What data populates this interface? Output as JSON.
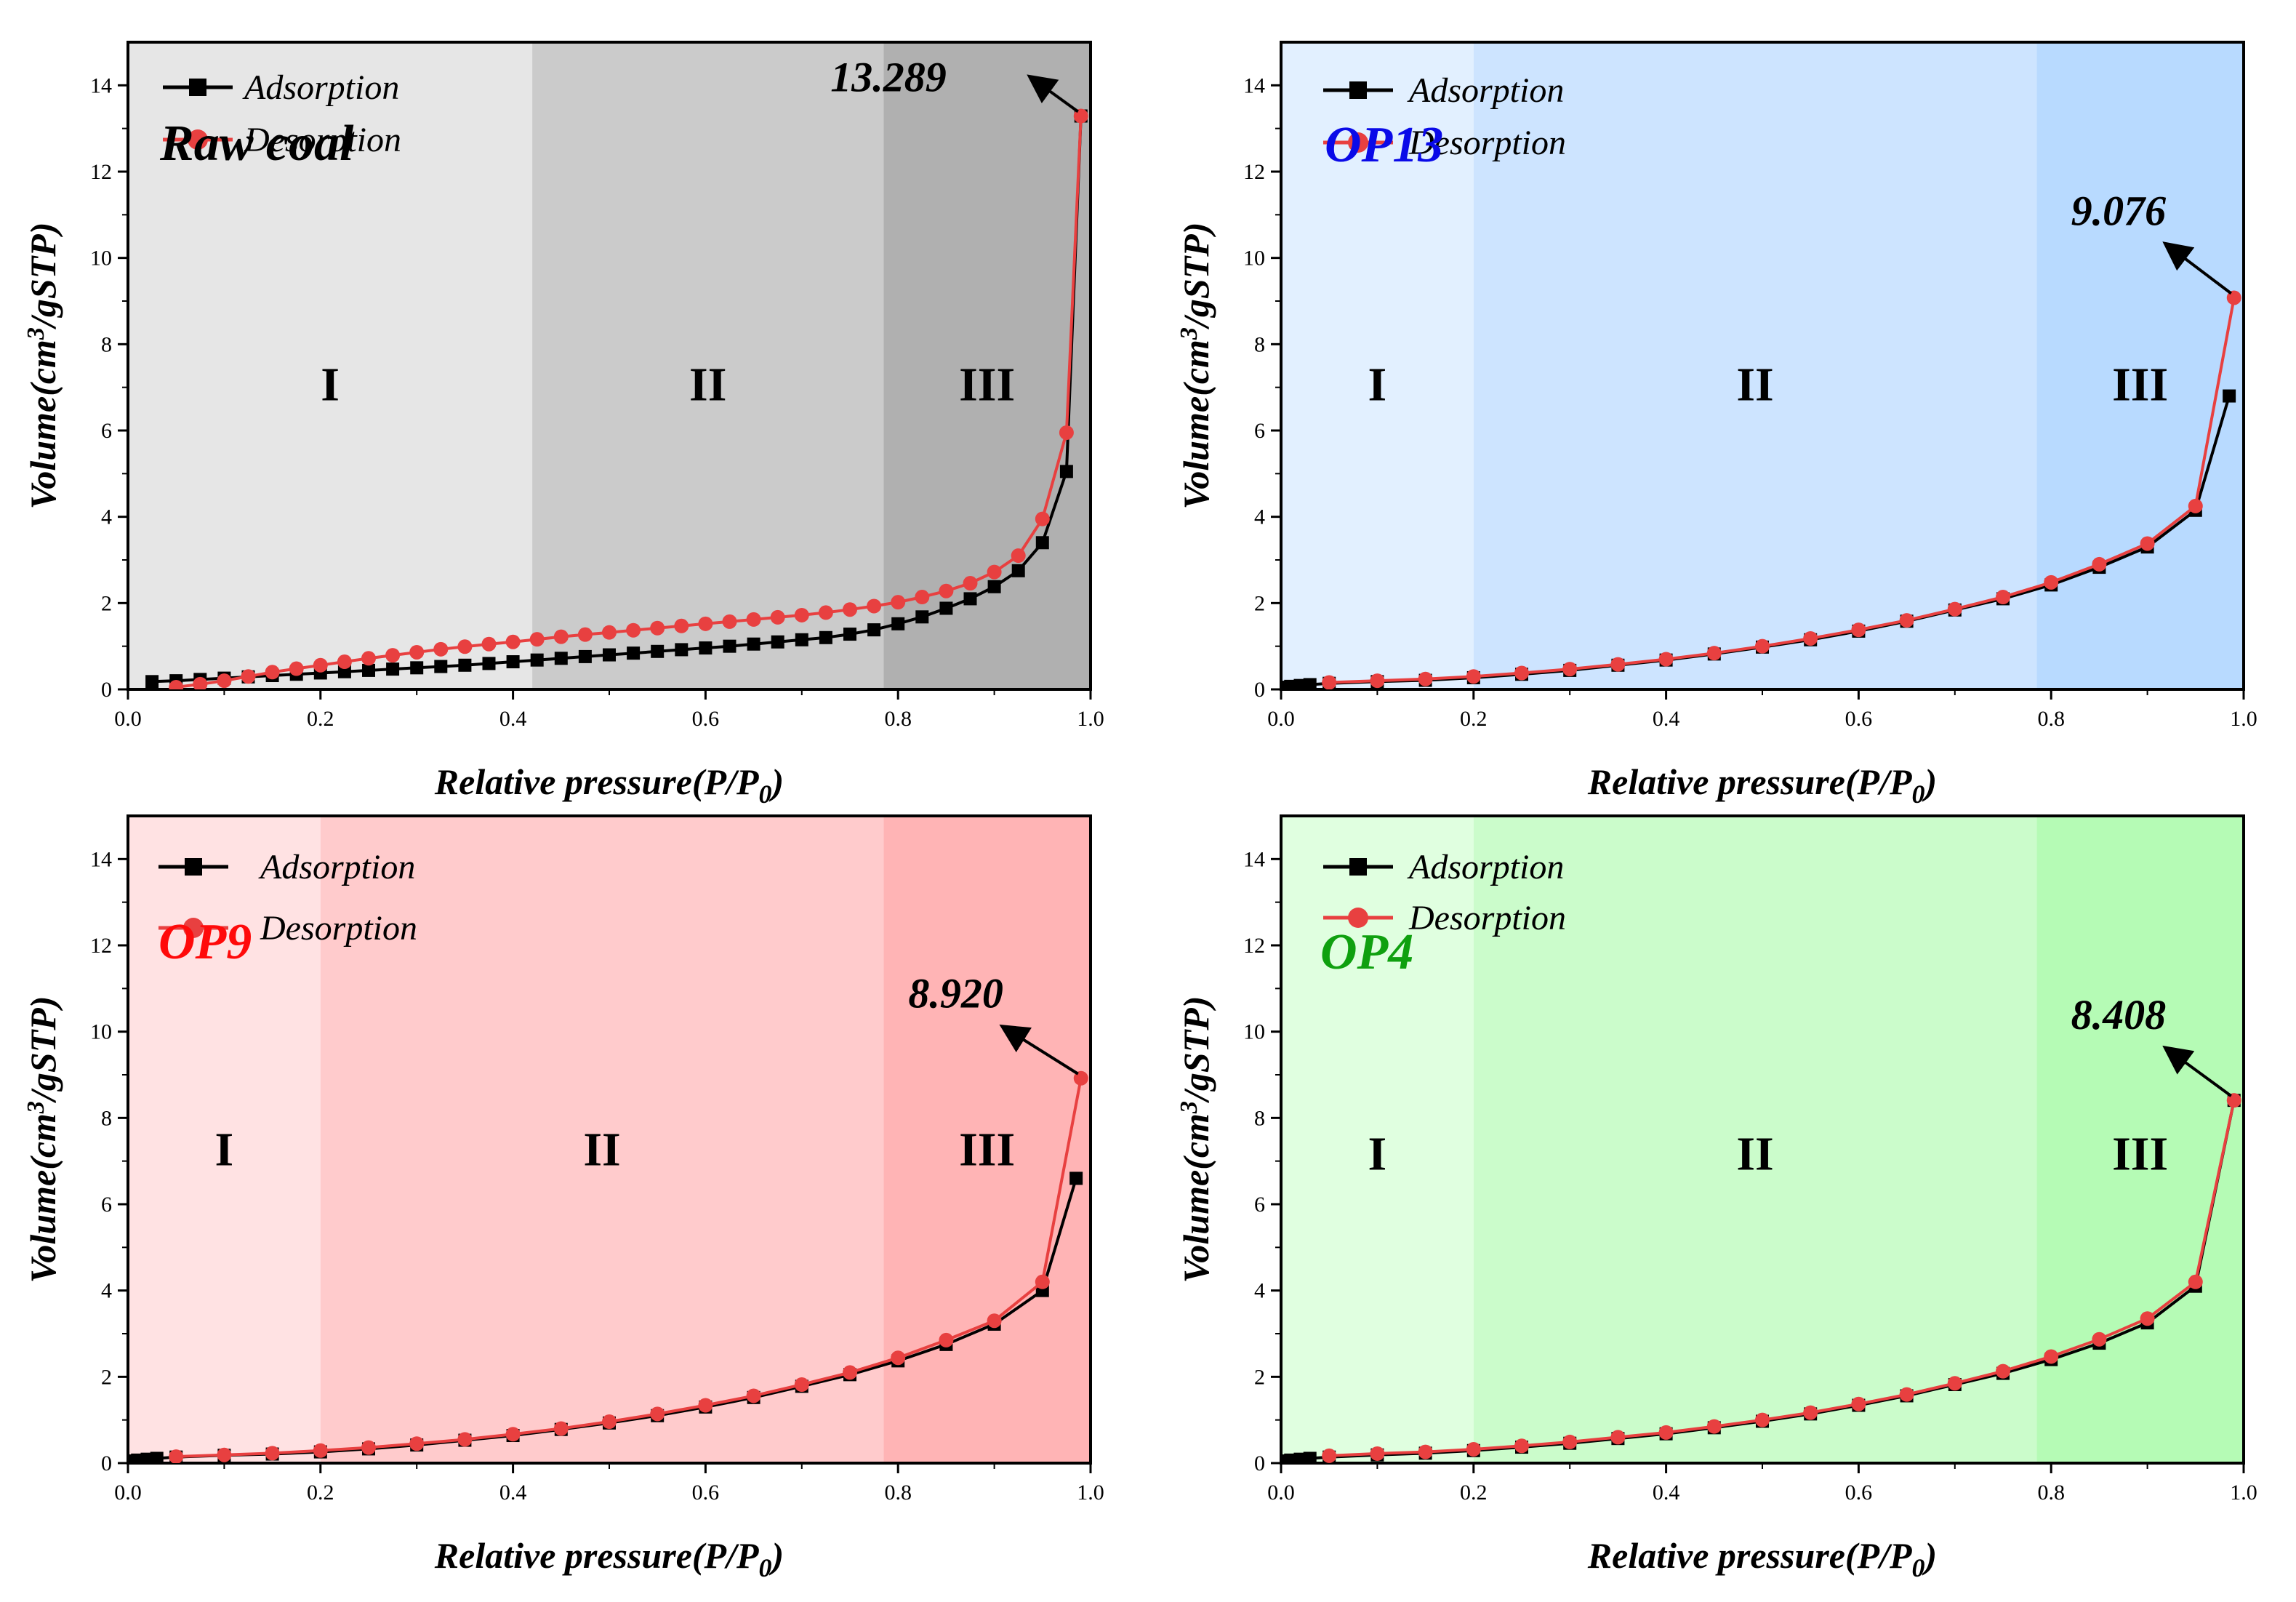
{
  "chart_data": [
    {
      "type": "line",
      "panel": "top-left",
      "sample_label": "Raw coal",
      "sample_color": "#000000",
      "xlabel_main": "Relative pressure(P/P",
      "xlabel_sub": "0",
      "xlabel_close": ")",
      "ylabel_main": "Volume(cm",
      "ylabel_sup": "3",
      "ylabel_rest": "/gSTP)",
      "xlim": [
        0.0,
        1.0
      ],
      "ylim": [
        0,
        15
      ],
      "x_ticks": [
        "0.0",
        "0.2",
        "0.4",
        "0.6",
        "0.8",
        "1.0"
      ],
      "y_ticks": [
        "0",
        "2",
        "4",
        "6",
        "8",
        "10",
        "12",
        "14"
      ],
      "legend": {
        "placement": "top-left",
        "entries": [
          "Adsorption",
          "Desorption"
        ]
      },
      "regions": [
        {
          "label": "I",
          "x_start": 0.0,
          "x_end": 0.42,
          "color": "#e6e6e6"
        },
        {
          "label": "II",
          "x_start": 0.42,
          "x_end": 0.785,
          "color": "#cbcbcb"
        },
        {
          "label": "III",
          "x_start": 0.785,
          "x_end": 1.0,
          "color": "#b0b0b0"
        }
      ],
      "region_label_y": 6.7,
      "peak": {
        "label": "13.289",
        "x": 0.99,
        "y": 13.289,
        "label_x": 0.79,
        "label_y": 14.2
      },
      "series": [
        {
          "name": "Adsorption",
          "color": "#000000",
          "marker": "square",
          "x": [
            0.025,
            0.05,
            0.075,
            0.1,
            0.125,
            0.15,
            0.175,
            0.2,
            0.225,
            0.25,
            0.275,
            0.3,
            0.325,
            0.35,
            0.375,
            0.4,
            0.425,
            0.45,
            0.475,
            0.5,
            0.525,
            0.55,
            0.575,
            0.6,
            0.625,
            0.65,
            0.675,
            0.7,
            0.725,
            0.75,
            0.775,
            0.8,
            0.825,
            0.85,
            0.875,
            0.9,
            0.925,
            0.95,
            0.975,
            0.99
          ],
          "y": [
            0.18,
            0.2,
            0.23,
            0.26,
            0.29,
            0.32,
            0.35,
            0.38,
            0.41,
            0.44,
            0.47,
            0.5,
            0.53,
            0.56,
            0.6,
            0.64,
            0.68,
            0.72,
            0.76,
            0.8,
            0.84,
            0.88,
            0.92,
            0.96,
            1.0,
            1.05,
            1.1,
            1.15,
            1.2,
            1.28,
            1.38,
            1.52,
            1.68,
            1.88,
            2.1,
            2.38,
            2.75,
            3.4,
            5.05,
            13.289
          ]
        },
        {
          "name": "Desorption",
          "color": "#e84040",
          "marker": "circle",
          "x": [
            0.05,
            0.075,
            0.1,
            0.125,
            0.15,
            0.175,
            0.2,
            0.225,
            0.25,
            0.275,
            0.3,
            0.325,
            0.35,
            0.375,
            0.4,
            0.425,
            0.45,
            0.475,
            0.5,
            0.525,
            0.55,
            0.575,
            0.6,
            0.625,
            0.65,
            0.675,
            0.7,
            0.725,
            0.75,
            0.775,
            0.8,
            0.825,
            0.85,
            0.875,
            0.9,
            0.925,
            0.95,
            0.975,
            0.99
          ],
          "y": [
            0.05,
            0.12,
            0.2,
            0.3,
            0.4,
            0.48,
            0.56,
            0.64,
            0.72,
            0.79,
            0.86,
            0.93,
            0.99,
            1.05,
            1.1,
            1.16,
            1.22,
            1.27,
            1.32,
            1.37,
            1.42,
            1.47,
            1.52,
            1.57,
            1.62,
            1.67,
            1.72,
            1.78,
            1.85,
            1.93,
            2.02,
            2.14,
            2.28,
            2.46,
            2.72,
            3.1,
            3.95,
            5.95,
            13.289
          ]
        }
      ]
    },
    {
      "type": "line",
      "panel": "top-right",
      "sample_label": "OP13",
      "sample_color": "#0a0ae8",
      "xlabel_main": "Relative pressure(P/P",
      "xlabel_sub": "0",
      "xlabel_close": ")",
      "ylabel_main": "Volume(cm",
      "ylabel_sup": "3",
      "ylabel_rest": "/gSTP)",
      "xlim": [
        0.0,
        1.0
      ],
      "ylim": [
        0,
        15
      ],
      "x_ticks": [
        "0.0",
        "0.2",
        "0.4",
        "0.6",
        "0.8",
        "1.0"
      ],
      "y_ticks": [
        "0",
        "2",
        "4",
        "6",
        "8",
        "10",
        "12",
        "14"
      ],
      "legend": {
        "placement": "top-left",
        "entries": [
          "Adsorption",
          "Desorption"
        ]
      },
      "regions": [
        {
          "label": "I",
          "x_start": 0.0,
          "x_end": 0.2,
          "color": "#e2f0ff"
        },
        {
          "label": "II",
          "x_start": 0.2,
          "x_end": 0.785,
          "color": "#cde4ff"
        },
        {
          "label": "III",
          "x_start": 0.785,
          "x_end": 1.0,
          "color": "#b8daff"
        }
      ],
      "region_label_y": 6.7,
      "peak": {
        "label": "9.076",
        "x": 0.99,
        "y": 9.076,
        "label_x": 0.87,
        "label_y": 11.1
      },
      "series": [
        {
          "name": "Adsorption",
          "color": "#000000",
          "marker": "square",
          "x": [
            0.005,
            0.01,
            0.02,
            0.03,
            0.05,
            0.1,
            0.15,
            0.2,
            0.25,
            0.3,
            0.35,
            0.4,
            0.45,
            0.5,
            0.55,
            0.6,
            0.65,
            0.7,
            0.75,
            0.8,
            0.85,
            0.9,
            0.95,
            0.985
          ],
          "y": [
            0.05,
            0.07,
            0.09,
            0.11,
            0.14,
            0.18,
            0.21,
            0.27,
            0.35,
            0.44,
            0.56,
            0.68,
            0.82,
            0.98,
            1.15,
            1.35,
            1.58,
            1.84,
            2.1,
            2.42,
            2.83,
            3.3,
            4.15,
            6.8
          ]
        },
        {
          "name": "Desorption",
          "color": "#e84040",
          "marker": "circle",
          "x": [
            0.05,
            0.1,
            0.15,
            0.2,
            0.25,
            0.3,
            0.35,
            0.4,
            0.45,
            0.5,
            0.55,
            0.6,
            0.65,
            0.7,
            0.75,
            0.8,
            0.85,
            0.9,
            0.95,
            0.99
          ],
          "y": [
            0.16,
            0.2,
            0.24,
            0.3,
            0.38,
            0.47,
            0.58,
            0.7,
            0.84,
            1.0,
            1.18,
            1.38,
            1.6,
            1.86,
            2.14,
            2.48,
            2.9,
            3.38,
            4.25,
            9.076
          ]
        }
      ]
    },
    {
      "type": "line",
      "panel": "bottom-left",
      "sample_label": "OP9",
      "sample_color": "#ff0a0a",
      "xlabel_main": "Relative pressure(P/P",
      "xlabel_sub": "0",
      "xlabel_close": ")",
      "ylabel_main": "Volume(cm",
      "ylabel_sup": "3",
      "ylabel_rest": "/gSTP)",
      "xlim": [
        0.0,
        1.0
      ],
      "ylim": [
        0,
        15
      ],
      "x_ticks": [
        "0.0",
        "0.2",
        "0.4",
        "0.6",
        "0.8",
        "1.0"
      ],
      "y_ticks": [
        "0",
        "2",
        "4",
        "6",
        "8",
        "10",
        "12",
        "14"
      ],
      "legend": {
        "placement": "top-left",
        "entries": [
          "Adsorption",
          "Desorption"
        ]
      },
      "regions": [
        {
          "label": "I",
          "x_start": 0.0,
          "x_end": 0.2,
          "color": "#ffe2e3"
        },
        {
          "label": "II",
          "x_start": 0.2,
          "x_end": 0.785,
          "color": "#ffcbcc"
        },
        {
          "label": "III",
          "x_start": 0.785,
          "x_end": 1.0,
          "color": "#ffb4b5"
        }
      ],
      "region_label_y": 6.9,
      "peak": {
        "label": "8.920",
        "x": 0.99,
        "y": 8.92,
        "label_x": 0.86,
        "label_y": 10.9
      },
      "series": [
        {
          "name": "Adsorption",
          "color": "#000000",
          "marker": "square",
          "x": [
            0.005,
            0.01,
            0.02,
            0.03,
            0.05,
            0.1,
            0.15,
            0.2,
            0.25,
            0.3,
            0.35,
            0.4,
            0.45,
            0.5,
            0.55,
            0.6,
            0.65,
            0.7,
            0.75,
            0.8,
            0.85,
            0.9,
            0.95,
            0.985
          ],
          "y": [
            0.05,
            0.07,
            0.09,
            0.11,
            0.14,
            0.18,
            0.21,
            0.26,
            0.33,
            0.42,
            0.53,
            0.64,
            0.78,
            0.93,
            1.1,
            1.3,
            1.52,
            1.78,
            2.05,
            2.37,
            2.75,
            3.22,
            4.0,
            6.6
          ]
        },
        {
          "name": "Desorption",
          "color": "#e84040",
          "marker": "circle",
          "x": [
            0.05,
            0.1,
            0.15,
            0.2,
            0.25,
            0.3,
            0.35,
            0.4,
            0.45,
            0.5,
            0.55,
            0.6,
            0.65,
            0.7,
            0.75,
            0.8,
            0.85,
            0.9,
            0.95,
            0.99
          ],
          "y": [
            0.15,
            0.19,
            0.23,
            0.29,
            0.36,
            0.45,
            0.55,
            0.67,
            0.8,
            0.96,
            1.14,
            1.34,
            1.56,
            1.82,
            2.1,
            2.44,
            2.85,
            3.3,
            4.2,
            8.92
          ]
        }
      ]
    },
    {
      "type": "line",
      "panel": "bottom-right",
      "sample_label": "OP4",
      "sample_color": "#0fa00f",
      "xlabel_main": "Relative pressure(P/P",
      "xlabel_sub": "0",
      "xlabel_close": ")",
      "ylabel_main": "Volume(cm",
      "ylabel_sup": "3",
      "ylabel_rest": "/gSTP)",
      "xlim": [
        0.0,
        1.0
      ],
      "ylim": [
        0,
        15
      ],
      "x_ticks": [
        "0.0",
        "0.2",
        "0.4",
        "0.6",
        "0.8",
        "1.0"
      ],
      "y_ticks": [
        "0",
        "2",
        "4",
        "6",
        "8",
        "10",
        "12",
        "14"
      ],
      "legend": {
        "placement": "top-left",
        "entries": [
          "Adsorption",
          "Desorption"
        ]
      },
      "regions": [
        {
          "label": "I",
          "x_start": 0.0,
          "x_end": 0.2,
          "color": "#e0ffe0"
        },
        {
          "label": "II",
          "x_start": 0.2,
          "x_end": 0.785,
          "color": "#cbfccb"
        },
        {
          "label": "III",
          "x_start": 0.785,
          "x_end": 1.0,
          "color": "#b5fbb5"
        }
      ],
      "region_label_y": 6.8,
      "peak": {
        "label": "8.408",
        "x": 0.99,
        "y": 8.408,
        "label_x": 0.87,
        "label_y": 10.4
      },
      "series": [
        {
          "name": "Adsorption",
          "color": "#000000",
          "marker": "square",
          "x": [
            0.005,
            0.01,
            0.02,
            0.03,
            0.05,
            0.1,
            0.15,
            0.2,
            0.25,
            0.3,
            0.35,
            0.4,
            0.45,
            0.5,
            0.55,
            0.6,
            0.65,
            0.7,
            0.75,
            0.8,
            0.85,
            0.9,
            0.95,
            0.99
          ],
          "y": [
            0.05,
            0.07,
            0.09,
            0.11,
            0.14,
            0.19,
            0.23,
            0.29,
            0.37,
            0.46,
            0.57,
            0.68,
            0.82,
            0.97,
            1.14,
            1.34,
            1.56,
            1.82,
            2.08,
            2.4,
            2.78,
            3.25,
            4.1,
            8.408
          ]
        },
        {
          "name": "Desorption",
          "color": "#e84040",
          "marker": "circle",
          "x": [
            0.05,
            0.1,
            0.15,
            0.2,
            0.25,
            0.3,
            0.35,
            0.4,
            0.45,
            0.5,
            0.55,
            0.6,
            0.65,
            0.7,
            0.75,
            0.8,
            0.85,
            0.9,
            0.95,
            0.99
          ],
          "y": [
            0.17,
            0.22,
            0.26,
            0.32,
            0.4,
            0.49,
            0.6,
            0.71,
            0.85,
            1.0,
            1.17,
            1.37,
            1.59,
            1.85,
            2.13,
            2.47,
            2.87,
            3.35,
            4.2,
            8.408
          ]
        }
      ]
    }
  ]
}
